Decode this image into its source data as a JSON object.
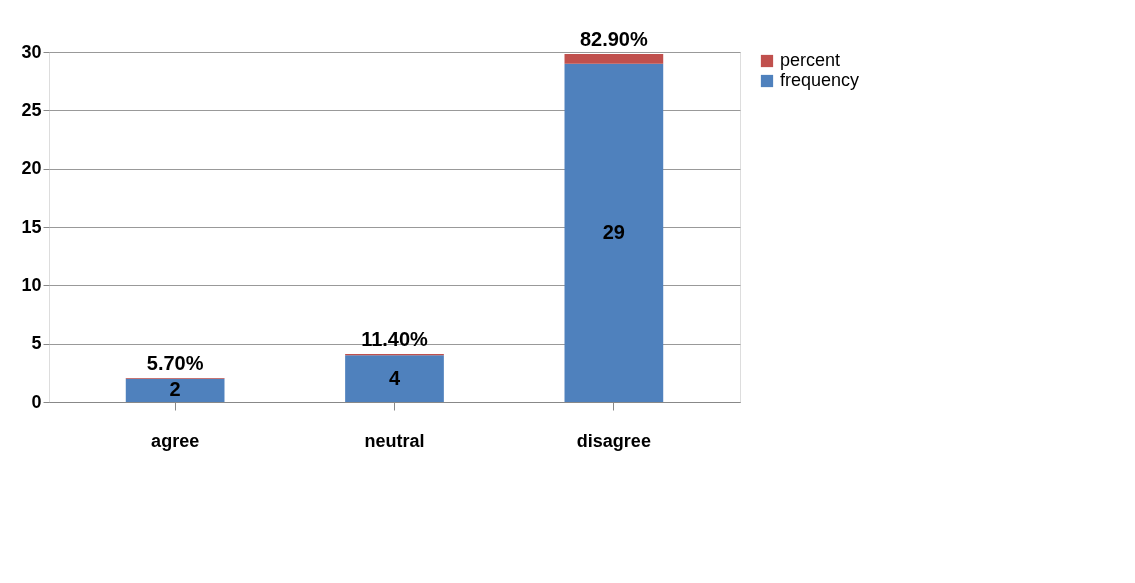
{
  "chart_data": {
    "type": "bar",
    "stacked": true,
    "categories": [
      "agree",
      "neutral",
      "disagree"
    ],
    "series": [
      {
        "name": "frequency",
        "color": "#4f81bd",
        "values": [
          2,
          4,
          29
        ],
        "value_labels": [
          "2",
          "4",
          "29"
        ]
      },
      {
        "name": "percent",
        "color": "#c0504d",
        "values": [
          0.057,
          0.114,
          0.829
        ],
        "value_labels": [
          "5.70%",
          "11.40%",
          "82.90%"
        ]
      }
    ],
    "ylim": [
      0,
      30
    ],
    "yticks": [
      0,
      5,
      10,
      15,
      20,
      25,
      30
    ],
    "grid": "y",
    "legend": "right"
  }
}
